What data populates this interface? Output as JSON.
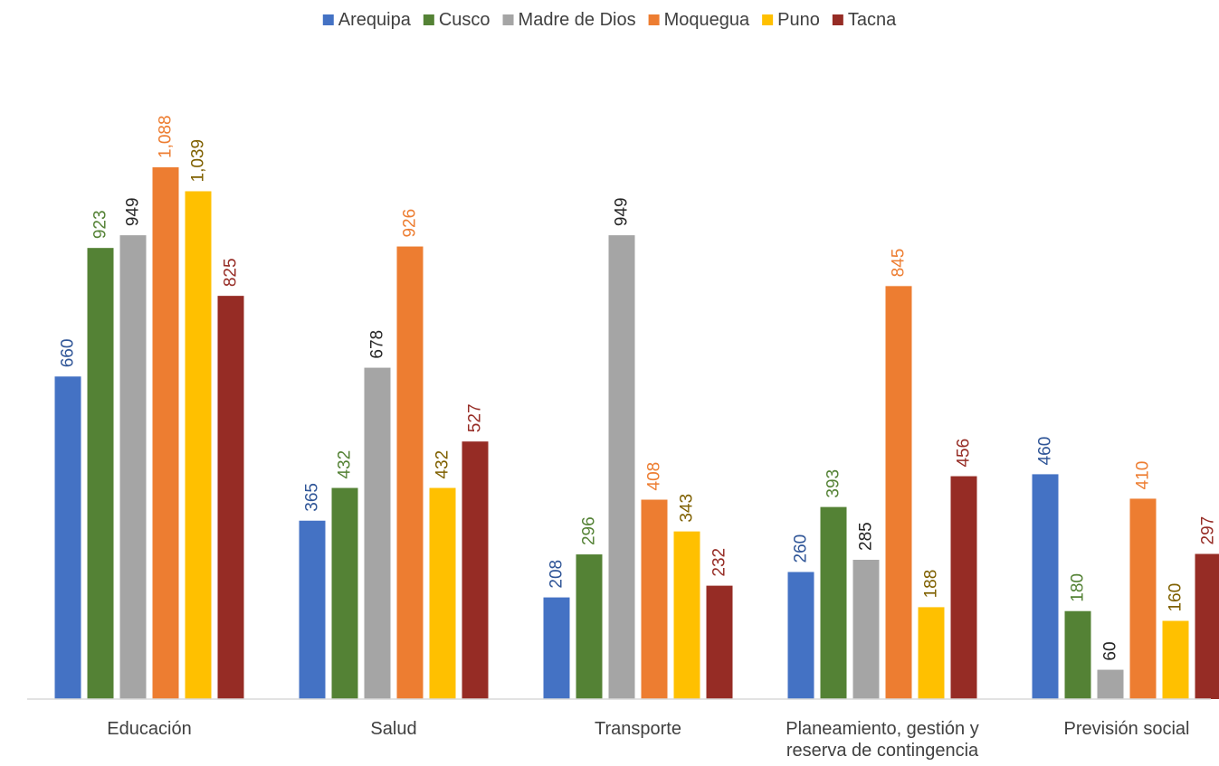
{
  "chart_data": {
    "type": "bar",
    "title": "",
    "xlabel": "",
    "ylabel": "",
    "ylim": [
      0,
      1100
    ],
    "grid": false,
    "legend_position": "top",
    "categories": [
      [
        "Educación"
      ],
      [
        "Salud"
      ],
      [
        "Transporte"
      ],
      [
        "Planeamiento, gestión y",
        "reserva de contingencia"
      ],
      [
        "Previsión social"
      ]
    ],
    "series": [
      {
        "name": "Arequipa",
        "color": "#4472C4",
        "label_color": "#2F5597",
        "values": [
          660,
          365,
          208,
          260,
          460
        ],
        "labels": [
          "660",
          "365",
          "208",
          "260",
          "460"
        ]
      },
      {
        "name": "Cusco",
        "color": "#548235",
        "label_color": "#548235",
        "values": [
          923,
          432,
          296,
          393,
          180
        ],
        "labels": [
          "923",
          "432",
          "296",
          "393",
          "180"
        ]
      },
      {
        "name": "Madre de Dios",
        "color": "#A5A5A5",
        "label_color": "#262626",
        "values": [
          949,
          678,
          949,
          285,
          60
        ],
        "labels": [
          "949",
          "678",
          "949",
          "285",
          "60"
        ]
      },
      {
        "name": "Moquegua",
        "color": "#ED7D31",
        "label_color": "#ED7D31",
        "values": [
          1088,
          926,
          408,
          845,
          410
        ],
        "labels": [
          "1,088",
          "926",
          "408",
          "845",
          "410"
        ]
      },
      {
        "name": "Puno",
        "color": "#FFC000",
        "label_color": "#7F6000",
        "values": [
          1039,
          432,
          343,
          188,
          160
        ],
        "labels": [
          "1,039",
          "432",
          "343",
          "188",
          "160"
        ]
      },
      {
        "name": "Tacna",
        "color": "#962C25",
        "label_color": "#962C25",
        "values": [
          825,
          527,
          232,
          456,
          297
        ],
        "labels": [
          "825",
          "527",
          "232",
          "456",
          "297"
        ]
      }
    ]
  }
}
